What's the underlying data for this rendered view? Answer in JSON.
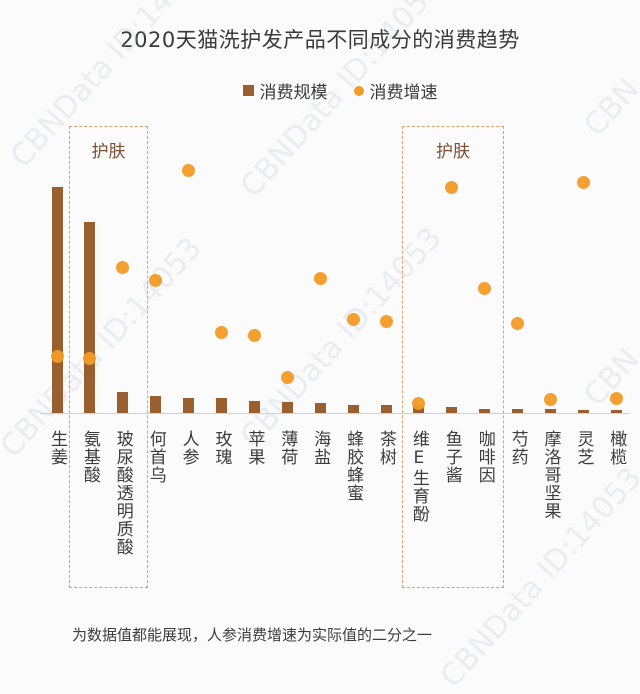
{
  "chart_data": {
    "type": "bar",
    "title": "2020天猫洗护发产品不同成分的消费趋势",
    "xlabel": "",
    "ylabel": "",
    "legend": [
      "消费规模",
      "消费增速"
    ],
    "legend_position": "top",
    "grid": false,
    "ylim": [
      0,
      100
    ],
    "categories": [
      "生姜",
      "氨基酸",
      "玻尿酸 透明质酸",
      "何首乌",
      "人参",
      "玫瑰",
      "苹果",
      "薄荷",
      "海盐",
      "蜂胶 蜂蜜",
      "茶树",
      "维E 生育酚",
      "鱼子酱",
      "咖啡因",
      "芍药",
      "摩洛哥坚果",
      "灵芝",
      "橄榄"
    ],
    "series": [
      {
        "name": "消费规模",
        "render": "bar",
        "color": "#9a5f2f",
        "values": [
          100,
          84.5,
          9.3,
          7.5,
          6.6,
          6.6,
          5.3,
          4.9,
          4.4,
          3.5,
          3.5,
          3.5,
          2.7,
          1.8,
          1.8,
          1.8,
          1.3,
          1.3
        ]
      },
      {
        "name": "消费增速",
        "render": "scatter",
        "color": "#f29b26",
        "values": [
          25.2,
          23.9,
          64.2,
          58.8,
          107.5,
          35.8,
          34.5,
          15.9,
          59.3,
          41.2,
          40.3,
          4.4,
          99.6,
          55.3,
          39.4,
          5.8,
          101.8,
          6.6
        ]
      }
    ],
    "annotations": [
      {
        "type": "dashed-box",
        "label": "护肤",
        "covers": [
          "氨基酸",
          "玻尿酸 透明质酸"
        ]
      },
      {
        "type": "dashed-box",
        "label": "护肤",
        "covers": [
          "维E 生育酚",
          "鱼子酱",
          "咖啡因"
        ]
      }
    ],
    "footnote": "为数据值都能展现，人参消费增速为实际值的二分之一"
  },
  "title": "2020天猫洗护发产品不同成分的消费趋势",
  "legend": {
    "bar_label": "消费规模",
    "dot_label": "消费增速"
  },
  "groups": [
    {
      "label": "护肤"
    },
    {
      "label": "护肤"
    }
  ],
  "labels": [
    "生姜",
    "氨基酸",
    "玻尿酸透明质酸",
    "何首乌",
    "人参",
    "玫瑰",
    "苹果",
    "薄荷",
    "海盐",
    "蜂胶蜂蜜",
    "茶树",
    "维E生育酚",
    "鱼子酱",
    "咖啡因",
    "芍药",
    "摩洛哥坚果",
    "灵芝",
    "橄榄"
  ],
  "footnote": "为数据值都能展现，人参消费增速为实际值的二分之一",
  "watermarks": [
    "CBNData ID:14053",
    "CBNData ID:14053",
    "CBNData ID:14053",
    "CBNData ID:14053",
    "CBN"
  ]
}
